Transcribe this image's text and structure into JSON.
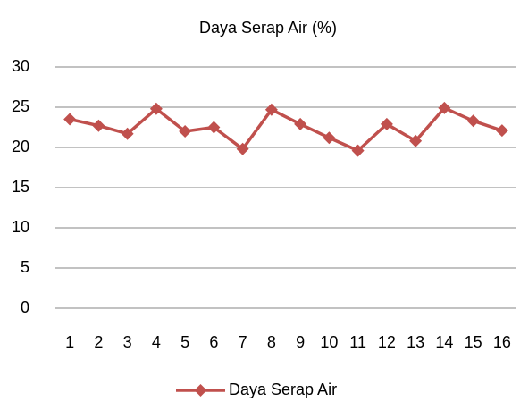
{
  "chart_data": {
    "type": "line",
    "title": "Daya Serap Air (%)",
    "categories": [
      "1",
      "2",
      "3",
      "4",
      "5",
      "6",
      "7",
      "8",
      "9",
      "10",
      "11",
      "12",
      "13",
      "14",
      "15",
      "16"
    ],
    "series": [
      {
        "name": "Daya Serap Air",
        "color": "#c0504d",
        "values": [
          23.5,
          22.7,
          21.7,
          24.8,
          22.0,
          22.5,
          19.8,
          24.7,
          22.9,
          21.2,
          19.6,
          22.9,
          20.8,
          24.9,
          23.3,
          22.1
        ]
      }
    ],
    "ylim": [
      0,
      30
    ],
    "yticks": [
      0,
      5,
      10,
      15,
      20,
      25,
      30
    ],
    "grid": true,
    "legend": "bottom"
  }
}
